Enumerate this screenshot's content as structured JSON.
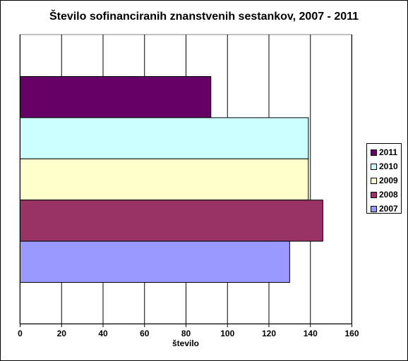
{
  "chart_data": {
    "type": "bar",
    "orientation": "horizontal",
    "title": "Število sofinanciranih znanstvenih sestankov, 2007 - 2011",
    "xlabel": "število",
    "ylabel": "",
    "xlim": [
      0,
      160
    ],
    "xticks": [
      "0",
      "20",
      "40",
      "60",
      "80",
      "100",
      "120",
      "140",
      "160"
    ],
    "grid": "vertical",
    "legend_position": "right",
    "series": [
      {
        "name": "2011",
        "value": 92,
        "color": "#660066"
      },
      {
        "name": "2010",
        "value": 139,
        "color": "#CCFFFF"
      },
      {
        "name": "2009",
        "value": 139,
        "color": "#FFFFCC"
      },
      {
        "name": "2008",
        "value": 146,
        "color": "#993366"
      },
      {
        "name": "2007",
        "value": 130,
        "color": "#9999FF"
      }
    ]
  }
}
